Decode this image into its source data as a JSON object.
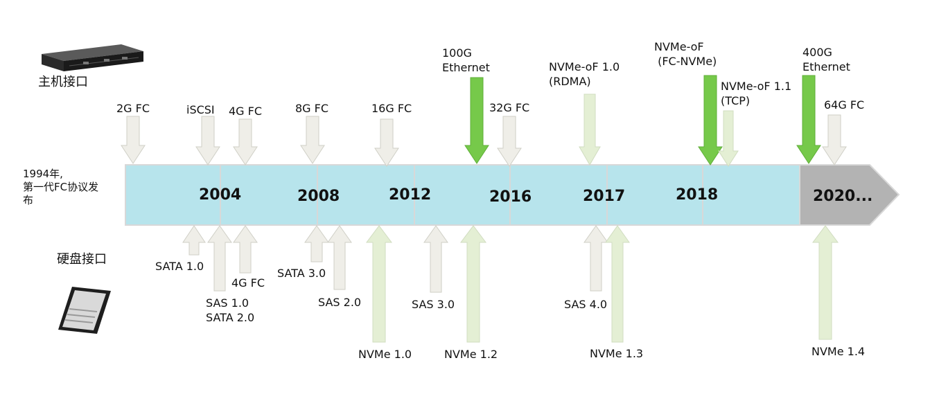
{
  "origin_note": "1994年,\n第一代FC协议发\n布",
  "host_section": {
    "label": "主机接口",
    "device": "server-icon"
  },
  "disk_section": {
    "label": "硬盘接口",
    "device": "ssd-icon"
  },
  "timeline": {
    "years": [
      "2004",
      "2008",
      "2012",
      "2016",
      "2017",
      "2018",
      "2020..."
    ],
    "colors": {
      "bar": "#b7e4ec",
      "future": "#b3b3b3",
      "arrow_light": "#efeee8",
      "arrow_green": "#76c94a",
      "arrow_pale_green": "#e4efd4"
    }
  },
  "host_interfaces": [
    {
      "label": "2G FC",
      "style": "light"
    },
    {
      "label": "iSCSI",
      "style": "light"
    },
    {
      "label": "4G FC",
      "style": "light"
    },
    {
      "label": "8G FC",
      "style": "light"
    },
    {
      "label": "16G FC",
      "style": "light"
    },
    {
      "label": "100G\nEthernet",
      "style": "green"
    },
    {
      "label": "32G FC",
      "style": "light"
    },
    {
      "label": "NVMe-oF 1.0\n(RDMA)",
      "style": "pale"
    },
    {
      "label": "NVMe-oF\n (FC-NVMe)",
      "style": "green"
    },
    {
      "label": "NVMe-oF 1.1\n(TCP)",
      "style": "pale"
    },
    {
      "label": "400G\nEthernet",
      "style": "green"
    },
    {
      "label": "64G FC",
      "style": "light"
    }
  ],
  "disk_interfaces": [
    {
      "label": "SATA 1.0",
      "style": "light"
    },
    {
      "label": "SAS 1.0\nSATA 2.0",
      "style": "light"
    },
    {
      "label": "4G FC",
      "style": "light"
    },
    {
      "label": "SATA 3.0",
      "style": "light"
    },
    {
      "label": "SAS 2.0",
      "style": "light"
    },
    {
      "label": "NVMe 1.0",
      "style": "pale"
    },
    {
      "label": "SAS 3.0",
      "style": "light"
    },
    {
      "label": "NVMe 1.2",
      "style": "pale"
    },
    {
      "label": "SAS 4.0",
      "style": "light"
    },
    {
      "label": "NVMe 1.3",
      "style": "pale"
    },
    {
      "label": "NVMe 1.4",
      "style": "pale"
    }
  ]
}
